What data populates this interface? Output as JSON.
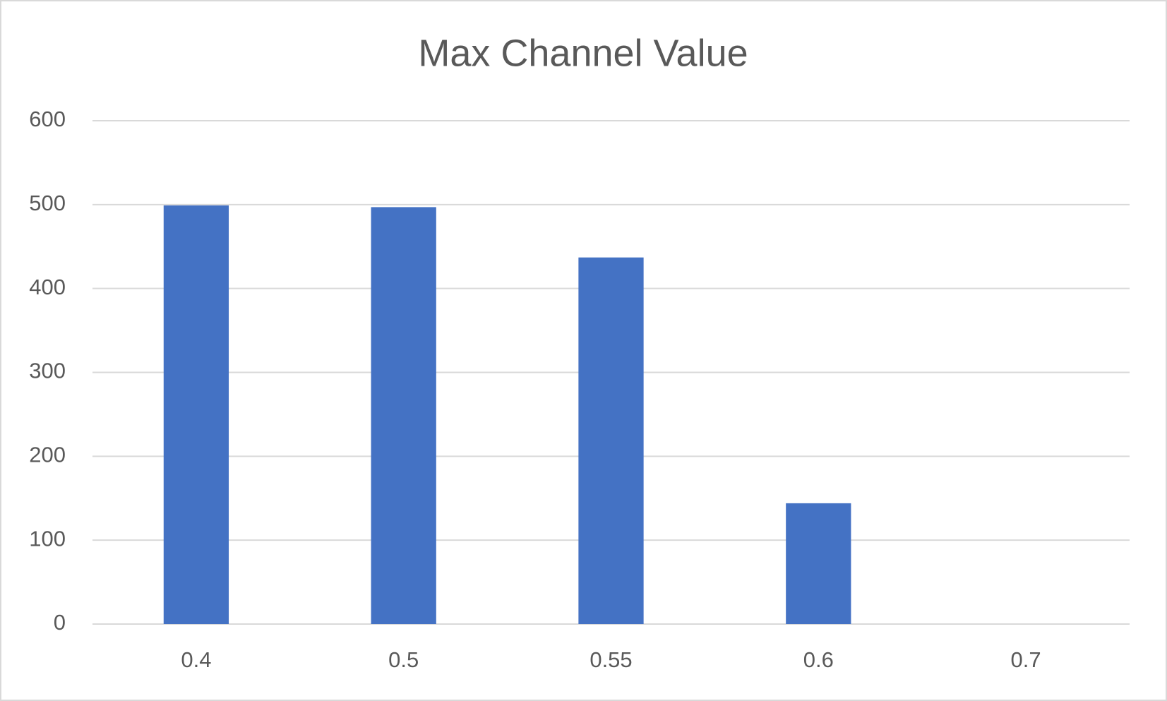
{
  "chart_data": {
    "type": "bar",
    "title": "Max Channel Value",
    "categories": [
      "0.4",
      "0.5",
      "0.55",
      "0.6",
      "0.7"
    ],
    "values": [
      499,
      497,
      437,
      144,
      0
    ],
    "color": "#4472c4",
    "ylim": [
      0,
      600
    ],
    "yticks": [
      0,
      100,
      200,
      300,
      400,
      500,
      600
    ],
    "grid": true
  }
}
